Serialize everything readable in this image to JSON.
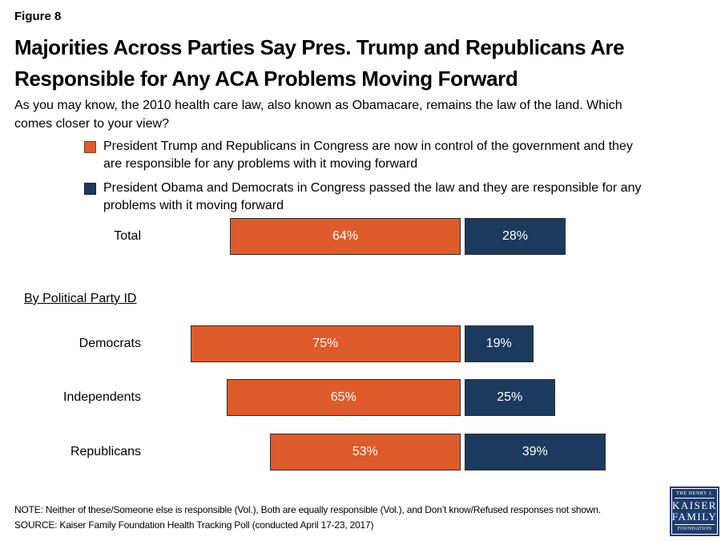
{
  "figure_label": "Figure 8",
  "title": {
    "lines": [
      "Majorities Across Parties Say Pres. Trump and Republicans Are",
      "Responsible for Any ACA Problems Moving Forward"
    ]
  },
  "subtitle": {
    "lines": [
      "As you may know, the 2010 health care law, also known as Obamacare, remains the law of the land. Which",
      "comes closer to your view?"
    ]
  },
  "legend": {
    "items": [
      {
        "color": "#DE5B2B",
        "lines": [
          "President Trump and Republicans in Congress are now in control of the government and they",
          "are responsible for any problems with it moving forward"
        ]
      },
      {
        "color": "#1C3A5E",
        "lines": [
          "President Obama and Democrats in Congress passed the law and they are responsible for any",
          "problems with it moving forward"
        ]
      }
    ]
  },
  "section_label": "By Political Party ID",
  "chart_data": {
    "type": "bar",
    "orientation": "horizontal",
    "unit": "%",
    "categories": [
      "Total",
      "Democrats",
      "Independents",
      "Republicans"
    ],
    "series": [
      {
        "name": "President Trump and Republicans in Congress responsible",
        "color": "#DE5B2B",
        "values": [
          64,
          75,
          65,
          53
        ]
      },
      {
        "name": "President Obama and Democrats in Congress responsible",
        "color": "#1C3A5E",
        "values": [
          28,
          19,
          25,
          39
        ]
      }
    ],
    "xlim": [
      0,
      100
    ],
    "group_label": "By Political Party ID",
    "legend_position": "top"
  },
  "footer": {
    "note": "NOTE: Neither of these/Someone else is responsible (Vol.), Both are equally responsible (Vol.), and Don’t know/Refused responses not shown.",
    "source": "SOURCE: Kaiser Family Foundation Health Tracking Poll (conducted April 17-23, 2017)",
    "logo": {
      "lines": [
        "THE HENRY J.",
        "KAISER",
        "FAMILY",
        "FOUNDATION"
      ]
    }
  },
  "colors": {
    "orange": "#DE5B2B",
    "navy": "#1C3A5E",
    "logo_navy": "#1E3C6E"
  }
}
